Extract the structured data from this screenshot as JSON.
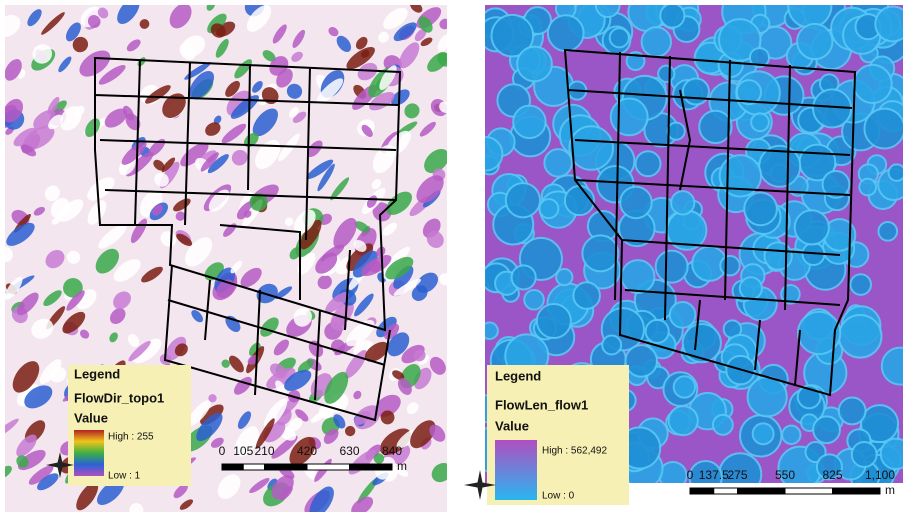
{
  "maps": [
    {
      "legend": {
        "title": "Legend",
        "layer": "FlowDir_topo1",
        "field": "Value",
        "high": "High : 255",
        "low": "Low : 1"
      },
      "scale": {
        "ticks": [
          "0",
          "105",
          "210",
          "420",
          "630",
          "840"
        ],
        "unit": "m"
      }
    },
    {
      "legend": {
        "title": "Legend",
        "layer": "FlowLen_flow1",
        "field": "Value",
        "high": "High : 562,492",
        "low": "Low : 0"
      },
      "scale": {
        "ticks": [
          "0",
          "137.5",
          "275",
          "550",
          "825",
          "1,100"
        ],
        "unit": "m"
      }
    }
  ]
}
